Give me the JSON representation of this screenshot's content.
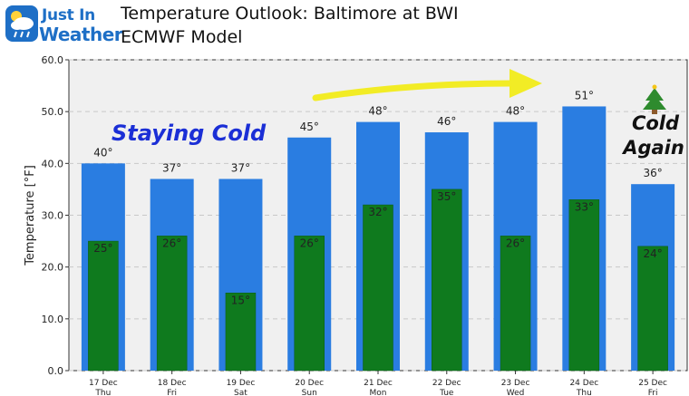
{
  "logo": {
    "line1": "Just In",
    "line2": "Weather"
  },
  "title": {
    "line1": "Temperature Outlook: Baltimore at BWI",
    "line2": "ECMWF Model"
  },
  "colors": {
    "high": "#2a7de1",
    "low": "#0f7a1e",
    "plot_bg": "#f0f0f0",
    "arrow": "#f2ec25",
    "annotation": "#1b2fd6"
  },
  "chart_data": {
    "type": "bar",
    "ylabel": "Temperature [°F]",
    "ylim": [
      0,
      60
    ],
    "yticks": [
      "0.0",
      "10.0",
      "20.0",
      "30.0",
      "40.0",
      "50.0",
      "60.0"
    ],
    "grid": true,
    "categories": [
      {
        "date": "17 Dec",
        "day": "Thu"
      },
      {
        "date": "18 Dec",
        "day": "Fri"
      },
      {
        "date": "19 Dec",
        "day": "Sat"
      },
      {
        "date": "20 Dec",
        "day": "Sun"
      },
      {
        "date": "21 Dec",
        "day": "Mon"
      },
      {
        "date": "22 Dec",
        "day": "Tue"
      },
      {
        "date": "23 Dec",
        "day": "Wed"
      },
      {
        "date": "24 Dec",
        "day": "Thu"
      },
      {
        "date": "25 Dec",
        "day": "Fri"
      }
    ],
    "series": [
      {
        "key": "high",
        "values": [
          40,
          37,
          37,
          45,
          48,
          46,
          48,
          51,
          36
        ],
        "labels": [
          "40°",
          "37°",
          "37°",
          "45°",
          "48°",
          "46°",
          "48°",
          "51°",
          "36°"
        ]
      },
      {
        "key": "low",
        "values": [
          25,
          26,
          15,
          26,
          32,
          35,
          26,
          33,
          24
        ],
        "labels": [
          "25°",
          "26°",
          "15°",
          "26°",
          "32°",
          "35°",
          "26°",
          "33°",
          "24°"
        ]
      }
    ],
    "annotations": [
      {
        "text": "Staying Cold",
        "color": "#1b2fd6"
      },
      {
        "text": "Cold",
        "color": "#111111"
      },
      {
        "text": "Again",
        "color": "#111111"
      }
    ],
    "icons": [
      "warming-arrow-icon",
      "christmas-tree-icon"
    ]
  }
}
